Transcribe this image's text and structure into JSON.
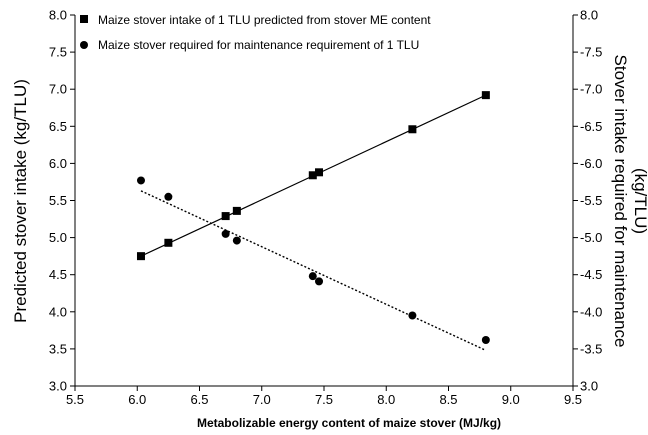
{
  "chart_data": {
    "type": "scatter",
    "xlabel": "Metabolizable energy content of maize stover (MJ/kg)",
    "ylabel": "Predicted stover intake (kg/TLU)",
    "y2label_line1": "Stover intake required for maintenance",
    "y2label_line2": "(kg/TLU)",
    "xlim": [
      5.5,
      9.5
    ],
    "ylim": [
      3.0,
      8.0
    ],
    "y2lim": [
      3.0,
      8.0
    ],
    "x_ticks": [
      "5.5",
      "6.0",
      "6.5",
      "7.0",
      "7.5",
      "8.0",
      "8.5",
      "9.0",
      "9.5"
    ],
    "y_ticks": [
      "3.0",
      "3.5",
      "4.0",
      "4.5",
      "5.0",
      "5.5",
      "6.0",
      "6.5",
      "7.0",
      "7.5",
      "8.0"
    ],
    "y2_ticks": [
      "3.0",
      "-3.5",
      "-4.0",
      "-4.5",
      "-5.0",
      "-5.5",
      "-6.0",
      "-6.5",
      "-7.0",
      "-7.5",
      "8.0"
    ],
    "legend_position": "top-left",
    "grid": false,
    "series": [
      {
        "name": "Maize stover intake of 1 TLU predicted from stover ME content",
        "marker": "square",
        "line": "solid",
        "points": [
          {
            "x": 6.03,
            "y": 4.75
          },
          {
            "x": 6.25,
            "y": 4.93
          },
          {
            "x": 6.71,
            "y": 5.29
          },
          {
            "x": 6.8,
            "y": 5.36
          },
          {
            "x": 7.41,
            "y": 5.84
          },
          {
            "x": 7.46,
            "y": 5.88
          },
          {
            "x": 8.21,
            "y": 6.46
          },
          {
            "x": 8.8,
            "y": 6.92
          }
        ],
        "fit": {
          "x": [
            6.03,
            8.8
          ],
          "y": [
            4.75,
            6.92
          ]
        }
      },
      {
        "name": "Maize stover required for maintenance requirement  of 1 TLU",
        "marker": "circle",
        "line": "dotted",
        "points": [
          {
            "x": 6.03,
            "y": 5.77
          },
          {
            "x": 6.25,
            "y": 5.55
          },
          {
            "x": 6.71,
            "y": 5.05
          },
          {
            "x": 6.8,
            "y": 4.96
          },
          {
            "x": 7.41,
            "y": 4.48
          },
          {
            "x": 7.46,
            "y": 4.41
          },
          {
            "x": 8.21,
            "y": 3.95
          },
          {
            "x": 8.8,
            "y": 3.62
          }
        ],
        "fit": {
          "x": [
            6.03,
            8.8
          ],
          "y": [
            5.63,
            3.48
          ]
        }
      }
    ],
    "colors": {
      "marker": "#000000",
      "line": "#000000"
    }
  }
}
